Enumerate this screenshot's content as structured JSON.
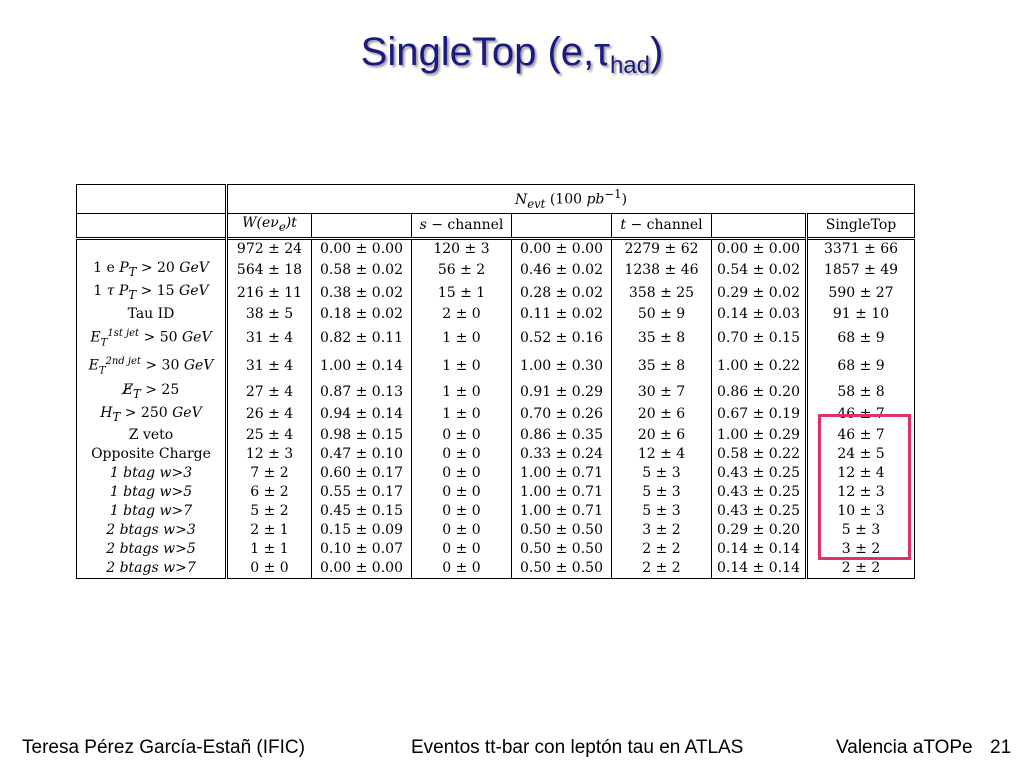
{
  "slide": {
    "title_main": "SingleTop (e,τ",
    "title_sub": "had",
    "title_close": ")",
    "page_number": "21"
  },
  "table": {
    "header_top": "N_evt (100 pb^-1)",
    "header_groups": [
      "W(eν_e)t",
      "s − channel",
      "t − channel",
      "SingleTop"
    ],
    "rows": [
      {
        "label": "",
        "cells": [
          "972 ± 24",
          "0.00 ± 0.00",
          "120 ± 3",
          "0.00 ± 0.00",
          "2279 ± 62",
          "0.00 ± 0.00",
          "3371 ± 66"
        ]
      },
      {
        "label": "1 e P_T > 20 GeV",
        "cells": [
          "564 ± 18",
          "0.58 ± 0.02",
          "56 ± 2",
          "0.46 ± 0.02",
          "1238 ± 46",
          "0.54 ± 0.02",
          "1857 ± 49"
        ]
      },
      {
        "label": "1 τ P_T > 15 GeV",
        "cells": [
          "216 ± 11",
          "0.38 ± 0.02",
          "15 ± 1",
          "0.28 ± 0.02",
          "358 ± 25",
          "0.29 ± 0.02",
          "590 ± 27"
        ]
      },
      {
        "label": "Tau ID",
        "cells": [
          "38 ± 5",
          "0.18 ± 0.02",
          "2 ± 0",
          "0.11 ± 0.02",
          "50 ± 9",
          "0.14 ± 0.03",
          "91 ± 10"
        ]
      },
      {
        "label": "E_T^1st jet > 50 GeV",
        "cells": [
          "31 ± 4",
          "0.82 ± 0.11",
          "1 ± 0",
          "0.52 ± 0.16",
          "35 ± 8",
          "0.70 ± 0.15",
          "68 ± 9"
        ]
      },
      {
        "label": "E_T^2nd jet > 30 GeV",
        "cells": [
          "31 ± 4",
          "1.00 ± 0.14",
          "1 ± 0",
          "1.00 ± 0.30",
          "35 ± 8",
          "1.00 ± 0.22",
          "68 ± 9"
        ]
      },
      {
        "label": "E̸_T > 25",
        "cells": [
          "27 ± 4",
          "0.87 ± 0.13",
          "1 ± 0",
          "0.91 ± 0.29",
          "30 ± 7",
          "0.86 ± 0.20",
          "58 ± 8"
        ]
      },
      {
        "label": "H_T > 250 GeV",
        "cells": [
          "26 ± 4",
          "0.94 ± 0.14",
          "1 ± 0",
          "0.70 ± 0.26",
          "20 ± 6",
          "0.67 ± 0.19",
          "46 ± 7"
        ]
      },
      {
        "label": "Z veto",
        "cells": [
          "25 ± 4",
          "0.98 ± 0.15",
          "0 ± 0",
          "0.86 ± 0.35",
          "20 ± 6",
          "1.00 ± 0.29",
          "46 ± 7"
        ]
      },
      {
        "label": "Opposite Charge",
        "cells": [
          "12 ± 3",
          "0.47 ± 0.10",
          "0 ± 0",
          "0.33 ± 0.24",
          "12 ± 4",
          "0.58 ± 0.22",
          "24 ± 5"
        ]
      },
      {
        "label": "1 btag w>3",
        "cells": [
          "7 ± 2",
          "0.60 ± 0.17",
          "0 ± 0",
          "1.00 ± 0.71",
          "5 ± 3",
          "0.43 ± 0.25",
          "12 ± 4"
        ]
      },
      {
        "label": "1 btag w>5",
        "cells": [
          "6 ± 2",
          "0.55 ± 0.17",
          "0 ± 0",
          "1.00 ± 0.71",
          "5 ± 3",
          "0.43 ± 0.25",
          "12 ± 3"
        ]
      },
      {
        "label": "1 btag w>7",
        "cells": [
          "5 ± 2",
          "0.45 ± 0.15",
          "0 ± 0",
          "1.00 ± 0.71",
          "5 ± 3",
          "0.43 ± 0.25",
          "10 ± 3"
        ]
      },
      {
        "label": "2 btags w>3",
        "cells": [
          "2 ± 1",
          "0.15 ± 0.09",
          "0 ± 0",
          "0.50 ± 0.50",
          "3 ± 2",
          "0.29 ± 0.20",
          "5 ± 3"
        ]
      },
      {
        "label": "2 btags w>5",
        "cells": [
          "1 ± 1",
          "0.10 ± 0.07",
          "0 ± 0",
          "0.50 ± 0.50",
          "2 ± 2",
          "0.14 ± 0.14",
          "3 ± 2"
        ]
      },
      {
        "label": "2 btags w>7",
        "cells": [
          "0 ± 0",
          "0.00 ± 0.00",
          "0 ± 0",
          "0.50 ± 0.50",
          "2 ± 2",
          "0.14 ± 0.14",
          "2 ± 2"
        ]
      }
    ]
  },
  "footer": {
    "left": "Teresa Pérez García-Estañ (IFIC)",
    "center": "Eventos tt-bar con leptón tau en ATLAS",
    "right": "Valencia aTOPe"
  },
  "colors": {
    "title": "#1a1a80",
    "highlight_box": "#e03070"
  }
}
